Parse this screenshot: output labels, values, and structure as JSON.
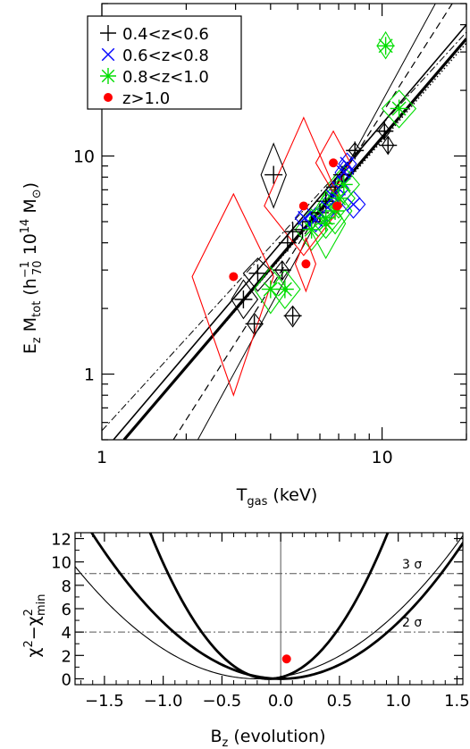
{
  "chart_data": [
    {
      "type": "scatter",
      "xlabel": "T",
      "xlabel_sub": "gas",
      "xlabel_unit": "(keV)",
      "ylabel_parts": {
        "e": "E",
        "e_sub": "z",
        "m": " M",
        "m_sub": "tot",
        "open": "  (h",
        "h_sup": "−1",
        "h_sub": "70",
        "unit": " 10",
        "exp": "14",
        "msun": " M",
        "sun": "⊙",
        "close": ")"
      },
      "xscale": "log",
      "yscale": "log",
      "xlim": [
        1,
        20
      ],
      "ylim": [
        0.5,
        50
      ],
      "x_ticks": [
        {
          "v": 1,
          "label": "1"
        },
        {
          "v": 10,
          "label": "10"
        }
      ],
      "y_ticks": [
        {
          "v": 1,
          "label": "1"
        },
        {
          "v": 10,
          "label": "10"
        }
      ],
      "legend_position": "top-left",
      "legend": [
        {
          "label": "0.4<z<0.6",
          "marker": "plus",
          "color": "#000000"
        },
        {
          "label": "0.6<z<0.8",
          "marker": "cross",
          "color": "#0000ff"
        },
        {
          "label": "0.8<z<1.0",
          "marker": "asterisk",
          "color": "#00dd00"
        },
        {
          "label": "z>1.0",
          "marker": "dot",
          "color": "#ff0000"
        }
      ],
      "series": [
        {
          "group": "0.4<z<0.6",
          "marker": "plus",
          "color": "#000000",
          "points": [
            [
              3.2,
              2.2
            ],
            [
              3.6,
              2.9
            ],
            [
              4.4,
              3.0
            ],
            [
              3.5,
              1.7
            ],
            [
              4.8,
              1.85
            ],
            [
              4.6,
              4.0
            ],
            [
              4.8,
              4.5
            ],
            [
              5.2,
              4.6
            ],
            [
              5.6,
              5.0
            ],
            [
              6.0,
              5.5
            ],
            [
              6.3,
              6.2
            ],
            [
              6.8,
              7.2
            ],
            [
              7.2,
              8.2
            ],
            [
              8.0,
              10.6
            ],
            [
              10.5,
              11.2
            ],
            [
              10.2,
              13.0
            ],
            [
              4.1,
              8.2
            ]
          ]
        },
        {
          "group": "0.6<z<0.8",
          "marker": "cross",
          "color": "#0000ff",
          "points": [
            [
              5.3,
              5.2
            ],
            [
              5.8,
              5.1
            ],
            [
              6.4,
              5.8
            ],
            [
              6.7,
              6.5
            ],
            [
              7.0,
              7.1
            ],
            [
              7.3,
              8.4
            ],
            [
              7.5,
              9.2
            ],
            [
              7.9,
              6.0
            ]
          ]
        },
        {
          "group": "0.8<z<1.0",
          "marker": "asterisk",
          "color": "#00dd00",
          "points": [
            [
              4.0,
              2.45
            ],
            [
              4.5,
              2.45
            ],
            [
              5.6,
              4.6
            ],
            [
              6.3,
              5.2
            ],
            [
              6.8,
              5.6
            ],
            [
              7.0,
              6.4
            ],
            [
              7.3,
              7.4
            ],
            [
              10.3,
              32.0
            ],
            [
              11.5,
              16.5
            ],
            [
              6.3,
              4.9
            ]
          ]
        },
        {
          "group": "z>1.0",
          "marker": "dot",
          "color": "#ff0000",
          "points": [
            [
              2.95,
              2.8
            ],
            [
              5.25,
              5.9
            ],
            [
              5.35,
              3.2
            ],
            [
              6.7,
              9.3
            ],
            [
              6.9,
              5.9
            ]
          ]
        }
      ],
      "error_diamonds": [
        {
          "x": 3.2,
          "y": 2.2,
          "xlo": 2.9,
          "xhi": 3.6,
          "ylo": 1.8,
          "yhi": 2.7,
          "color": "#000000"
        },
        {
          "x": 3.6,
          "y": 2.9,
          "xlo": 3.2,
          "xhi": 4.1,
          "ylo": 2.4,
          "yhi": 3.4,
          "color": "#000000"
        },
        {
          "x": 3.5,
          "y": 1.7,
          "xlo": 3.3,
          "xhi": 3.75,
          "ylo": 1.52,
          "yhi": 1.9,
          "color": "#000000"
        },
        {
          "x": 4.8,
          "y": 1.85,
          "xlo": 4.5,
          "xhi": 5.1,
          "ylo": 1.65,
          "yhi": 2.05,
          "color": "#000000"
        },
        {
          "x": 4.4,
          "y": 3.0,
          "xlo": 4.15,
          "xhi": 4.65,
          "ylo": 2.7,
          "yhi": 3.3,
          "color": "#000000"
        },
        {
          "x": 4.1,
          "y": 8.2,
          "xlo": 3.7,
          "xhi": 4.55,
          "ylo": 5.8,
          "yhi": 11.4,
          "color": "#000000"
        },
        {
          "x": 8.0,
          "y": 10.6,
          "xlo": 7.6,
          "xhi": 8.4,
          "ylo": 9.8,
          "yhi": 11.5,
          "color": "#000000"
        },
        {
          "x": 10.5,
          "y": 11.2,
          "xlo": 10.0,
          "xhi": 11.0,
          "ylo": 10.2,
          "yhi": 12.3,
          "color": "#000000"
        },
        {
          "x": 10.2,
          "y": 13.0,
          "xlo": 9.7,
          "xhi": 10.7,
          "ylo": 12.0,
          "yhi": 14.1,
          "color": "#000000"
        },
        {
          "x": 7.9,
          "y": 6.0,
          "xlo": 7.2,
          "xhi": 8.7,
          "ylo": 5.2,
          "yhi": 6.9,
          "color": "#0000ff"
        },
        {
          "x": 7.0,
          "y": 7.1,
          "xlo": 6.5,
          "xhi": 7.6,
          "ylo": 6.2,
          "yhi": 8.1,
          "color": "#0000ff"
        },
        {
          "x": 7.3,
          "y": 8.4,
          "xlo": 6.8,
          "xhi": 7.9,
          "ylo": 7.4,
          "yhi": 9.5,
          "color": "#0000ff"
        },
        {
          "x": 7.5,
          "y": 9.2,
          "xlo": 7.0,
          "xhi": 8.1,
          "ylo": 8.2,
          "yhi": 10.3,
          "color": "#0000ff"
        },
        {
          "x": 6.4,
          "y": 5.8,
          "xlo": 5.9,
          "xhi": 7.0,
          "ylo": 5.0,
          "yhi": 6.7,
          "color": "#0000ff"
        },
        {
          "x": 5.8,
          "y": 5.1,
          "xlo": 5.3,
          "xhi": 6.3,
          "ylo": 4.5,
          "yhi": 5.8,
          "color": "#0000ff"
        },
        {
          "x": 5.3,
          "y": 5.2,
          "xlo": 4.9,
          "xhi": 5.8,
          "ylo": 4.6,
          "yhi": 5.9,
          "color": "#0000ff"
        },
        {
          "x": 4.0,
          "y": 2.45,
          "xlo": 3.5,
          "xhi": 4.6,
          "ylo": 1.9,
          "yhi": 3.1,
          "color": "#00dd00"
        },
        {
          "x": 4.5,
          "y": 2.45,
          "xlo": 4.0,
          "xhi": 5.1,
          "ylo": 2.0,
          "yhi": 3.0,
          "color": "#00dd00"
        },
        {
          "x": 5.6,
          "y": 4.6,
          "xlo": 4.9,
          "xhi": 6.4,
          "ylo": 3.7,
          "yhi": 5.7,
          "color": "#00dd00"
        },
        {
          "x": 6.3,
          "y": 5.2,
          "xlo": 5.5,
          "xhi": 7.2,
          "ylo": 4.2,
          "yhi": 6.4,
          "color": "#00dd00"
        },
        {
          "x": 6.8,
          "y": 5.6,
          "xlo": 5.9,
          "xhi": 7.8,
          "ylo": 4.4,
          "yhi": 7.1,
          "color": "#00dd00"
        },
        {
          "x": 6.3,
          "y": 4.9,
          "xlo": 5.4,
          "xhi": 7.4,
          "ylo": 3.4,
          "yhi": 6.9,
          "color": "#00dd00"
        },
        {
          "x": 7.0,
          "y": 6.4,
          "xlo": 6.1,
          "xhi": 8.0,
          "ylo": 5.2,
          "yhi": 7.8,
          "color": "#00dd00"
        },
        {
          "x": 7.3,
          "y": 7.4,
          "xlo": 6.4,
          "xhi": 8.3,
          "ylo": 6.1,
          "yhi": 9.0,
          "color": "#00dd00"
        },
        {
          "x": 10.3,
          "y": 32.0,
          "xlo": 9.6,
          "xhi": 11.0,
          "ylo": 28.0,
          "yhi": 37.0,
          "color": "#00dd00"
        },
        {
          "x": 11.5,
          "y": 16.5,
          "xlo": 10.0,
          "xhi": 13.2,
          "ylo": 13.5,
          "yhi": 20.0,
          "color": "#00dd00"
        },
        {
          "x": 2.95,
          "y": 2.8,
          "xlo": 2.1,
          "xhi": 4.1,
          "ylo": 0.8,
          "yhi": 6.7,
          "color": "#ff0000"
        },
        {
          "x": 5.25,
          "y": 5.9,
          "xlo": 3.8,
          "xhi": 7.2,
          "ylo": 3.5,
          "yhi": 15.0,
          "color": "#ff0000"
        },
        {
          "x": 5.35,
          "y": 3.2,
          "xlo": 4.9,
          "xhi": 5.8,
          "ylo": 2.4,
          "yhi": 4.2,
          "color": "#ff0000"
        },
        {
          "x": 6.7,
          "y": 9.3,
          "xlo": 5.8,
          "xhi": 7.7,
          "ylo": 6.8,
          "yhi": 13.0,
          "color": "#ff0000"
        }
      ],
      "fit_lines": [
        {
          "style": "thick-solid",
          "p1": [
            1.2,
            0.5
          ],
          "p2": [
            20,
            34.5
          ]
        },
        {
          "style": "solid",
          "p1": [
            1.1,
            0.5
          ],
          "p2": [
            20,
            40.0
          ]
        },
        {
          "style": "thin-solid",
          "p1": [
            2.2,
            0.5
          ],
          "p2": [
            15.5,
            50.0
          ]
        },
        {
          "style": "dashed",
          "p1": [
            1.8,
            0.5
          ],
          "p2": [
            17.8,
            50.0
          ]
        },
        {
          "style": "dash-dot",
          "p1": [
            1.0,
            0.55
          ],
          "p2": [
            20,
            37.0
          ]
        },
        {
          "style": "dotted",
          "p1": [
            1.2,
            0.5
          ],
          "p2": [
            20,
            33.0
          ]
        }
      ]
    },
    {
      "type": "line",
      "xlabel": "B",
      "xlabel_sub": "z",
      "xlabel_unit": " (evolution)",
      "ylabel_parts": {
        "chi": "χ",
        "sup1": "2",
        "mid": "−χ",
        "sup2": "2",
        "sub2": "min"
      },
      "xlim": [
        -1.75,
        1.55
      ],
      "ylim": [
        -0.5,
        12.5
      ],
      "x_ticks": [
        {
          "v": -1.5,
          "label": "−1.5"
        },
        {
          "v": -1.0,
          "label": "−1.0"
        },
        {
          "v": -0.5,
          "label": "−0.5"
        },
        {
          "v": 0.0,
          "label": "0.0"
        },
        {
          "v": 0.5,
          "label": "0.5"
        },
        {
          "v": 1.0,
          "label": "1.0"
        },
        {
          "v": 1.5,
          "label": "1.5"
        }
      ],
      "y_ticks": [
        {
          "v": 0,
          "label": "0"
        },
        {
          "v": 2,
          "label": "2"
        },
        {
          "v": 4,
          "label": "4"
        },
        {
          "v": 6,
          "label": "6"
        },
        {
          "v": 8,
          "label": "8"
        },
        {
          "v": 10,
          "label": "10"
        },
        {
          "v": 12,
          "label": "12"
        }
      ],
      "reference_lines": [
        {
          "y": 9,
          "label": "3 σ"
        },
        {
          "y": 4,
          "label": "2 σ"
        }
      ],
      "vertical_line_x": 0.0,
      "curves": [
        {
          "name": "narrow-thick",
          "style": "thick",
          "min_x": -0.1,
          "width": 0.286,
          "xrange": [
            -1.2,
            1.2
          ]
        },
        {
          "name": "wide-thick",
          "style": "thick",
          "min_x": 0.0,
          "width": 0.455,
          "xrange": [
            -1.8,
            1.7
          ]
        },
        {
          "name": "wide-thin",
          "style": "thin",
          "min_x": -0.2,
          "width": 0.5,
          "xrange": [
            -1.9,
            1.7
          ]
        }
      ],
      "marker": {
        "x": 0.05,
        "y": 1.7,
        "color": "#ff0000"
      }
    }
  ]
}
